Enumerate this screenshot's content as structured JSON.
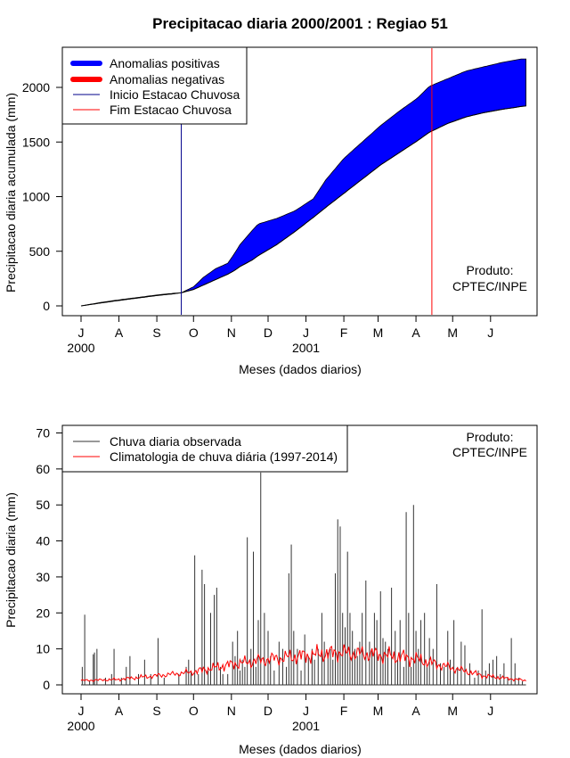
{
  "page": {
    "title": "Precipitacao diaria 2000/2001 : Regiao 51",
    "credit_line1": "Produto:",
    "credit_line2": "CPTEC/INPE"
  },
  "colors": {
    "positive": "#0000ff",
    "negative": "#ff0000",
    "observed": "#333333",
    "climatology": "#ff0000",
    "start_line": "#00008b",
    "end_line": "#ff0000"
  },
  "chart_data": [
    {
      "type": "area",
      "title": "Precipitacao diaria 2000/2001 : Regiao 51",
      "xlabel": "Meses (dados diarios)",
      "ylabel": "Precipitacao diaria acumulada (mm)",
      "ylim": [
        0,
        2300
      ],
      "yticks": [
        0,
        500,
        1000,
        1500,
        2000
      ],
      "month_labels": [
        "J",
        "A",
        "S",
        "O",
        "N",
        "D",
        "J",
        "F",
        "M",
        "A",
        "M",
        "J"
      ],
      "year_labels": [
        {
          "label": "2000",
          "month_index": 0
        },
        {
          "label": "2001",
          "month_index": 6
        }
      ],
      "grid": false,
      "legend_position": "top-left",
      "legend": [
        "Anomalias positivas",
        "Anomalias negativas",
        "Inicio Estacao Chuvosa",
        "Fim Estacao Chuvosa"
      ],
      "season_start_day": 82,
      "season_end_day": 287,
      "series": [
        {
          "name": "observed_cumulative",
          "x_day": [
            0,
            15,
            31,
            45,
            62,
            75,
            82,
            92,
            100,
            110,
            120,
            125,
            130,
            140,
            145,
            160,
            175,
            190,
            200,
            215,
            230,
            245,
            260,
            275,
            285,
            300,
            315,
            330,
            345,
            360,
            364
          ],
          "values": [
            0,
            30,
            55,
            75,
            100,
            115,
            120,
            175,
            260,
            340,
            390,
            470,
            560,
            690,
            750,
            800,
            870,
            980,
            1150,
            1350,
            1500,
            1650,
            1780,
            1900,
            2010,
            2080,
            2150,
            2190,
            2230,
            2260,
            2260
          ]
        },
        {
          "name": "climatology_cumulative",
          "x_day": [
            0,
            15,
            31,
            45,
            62,
            75,
            82,
            92,
            100,
            110,
            120,
            125,
            130,
            140,
            145,
            160,
            175,
            190,
            200,
            215,
            230,
            245,
            260,
            275,
            285,
            300,
            315,
            330,
            345,
            360,
            364
          ],
          "values": [
            0,
            25,
            50,
            70,
            95,
            110,
            120,
            150,
            190,
            240,
            290,
            320,
            360,
            420,
            460,
            560,
            680,
            810,
            900,
            1030,
            1160,
            1290,
            1400,
            1510,
            1590,
            1670,
            1730,
            1770,
            1800,
            1825,
            1830
          ]
        }
      ]
    },
    {
      "type": "line",
      "xlabel": "Meses (dados diarios)",
      "ylabel": "Precipitacao diaria (mm)",
      "ylim": [
        0,
        70
      ],
      "yticks": [
        0,
        10,
        20,
        30,
        40,
        50,
        60,
        70
      ],
      "month_labels": [
        "J",
        "A",
        "S",
        "O",
        "N",
        "D",
        "J",
        "F",
        "M",
        "A",
        "M",
        "J"
      ],
      "year_labels": [
        {
          "label": "2000",
          "month_index": 0
        },
        {
          "label": "2001",
          "month_index": 6
        }
      ],
      "grid": false,
      "legend_position": "top-left",
      "legend": [
        "Chuva diaria observada",
        "Climatologia de chuva diária (1997-2014)"
      ],
      "series": [
        {
          "name": "Chuva diaria observada",
          "spikes": [
            [
              1,
              5
            ],
            [
              3,
              19.5
            ],
            [
              7,
              1
            ],
            [
              10,
              8.5
            ],
            [
              11,
              9
            ],
            [
              13,
              10
            ],
            [
              20,
              2
            ],
            [
              25,
              3
            ],
            [
              27,
              10
            ],
            [
              33,
              2
            ],
            [
              37,
              5
            ],
            [
              40,
              8
            ],
            [
              47,
              3
            ],
            [
              52,
              7
            ],
            [
              57,
              3
            ],
            [
              63,
              13
            ],
            [
              68,
              2
            ],
            [
              80,
              3
            ],
            [
              86,
              5
            ],
            [
              88,
              7
            ],
            [
              90,
              4
            ],
            [
              93,
              36
            ],
            [
              96,
              3
            ],
            [
              99,
              32
            ],
            [
              101,
              28
            ],
            [
              104,
              4
            ],
            [
              106,
              20
            ],
            [
              109,
              25
            ],
            [
              111,
              27
            ],
            [
              114,
              5
            ],
            [
              116,
              3
            ],
            [
              120,
              3
            ],
            [
              124,
              12
            ],
            [
              126,
              8
            ],
            [
              128,
              15
            ],
            [
              130,
              4
            ],
            [
              132,
              7
            ],
            [
              134,
              5
            ],
            [
              136,
              41
            ],
            [
              139,
              10
            ],
            [
              141,
              37
            ],
            [
              143,
              5
            ],
            [
              145,
              18
            ],
            [
              147,
              59
            ],
            [
              150,
              20
            ],
            [
              153,
              15
            ],
            [
              155,
              8
            ],
            [
              158,
              4
            ],
            [
              162,
              12
            ],
            [
              165,
              10
            ],
            [
              168,
              5
            ],
            [
              170,
              31
            ],
            [
              172,
              39
            ],
            [
              174,
              15
            ],
            [
              177,
              10
            ],
            [
              180,
              4
            ],
            [
              183,
              14
            ],
            [
              186,
              8
            ],
            [
              189,
              10
            ],
            [
              191,
              7
            ],
            [
              194,
              10
            ],
            [
              197,
              20
            ],
            [
              199,
              12
            ],
            [
              202,
              9
            ],
            [
              204,
              10
            ],
            [
              206,
              7
            ],
            [
              208,
              31
            ],
            [
              210,
              46
            ],
            [
              212,
              44
            ],
            [
              214,
              20
            ],
            [
              216,
              16
            ],
            [
              218,
              37
            ],
            [
              220,
              20
            ],
            [
              222,
              15
            ],
            [
              224,
              10
            ],
            [
              226,
              8
            ],
            [
              228,
              12
            ],
            [
              230,
              20
            ],
            [
              233,
              29
            ],
            [
              236,
              12
            ],
            [
              238,
              10
            ],
            [
              240,
              20
            ],
            [
              242,
              18
            ],
            [
              245,
              26
            ],
            [
              247,
              13
            ],
            [
              249,
              12
            ],
            [
              251,
              10
            ],
            [
              254,
              27
            ],
            [
              257,
              15
            ],
            [
              259,
              7
            ],
            [
              261,
              18
            ],
            [
              264,
              5
            ],
            [
              266,
              48
            ],
            [
              268,
              20
            ],
            [
              270,
              5
            ],
            [
              272,
              50
            ],
            [
              274,
              15
            ],
            [
              276,
              10
            ],
            [
              278,
              18
            ],
            [
              281,
              20
            ],
            [
              283,
              5
            ],
            [
              285,
              13
            ],
            [
              288,
              10
            ],
            [
              291,
              28
            ],
            [
              294,
              6
            ],
            [
              297,
              5
            ],
            [
              300,
              15
            ],
            [
              302,
              7
            ],
            [
              305,
              18
            ],
            [
              308,
              5
            ],
            [
              311,
              12
            ],
            [
              314,
              11
            ],
            [
              318,
              6
            ],
            [
              322,
              2
            ],
            [
              325,
              4
            ],
            [
              328,
              21
            ],
            [
              331,
              4
            ],
            [
              334,
              6
            ],
            [
              337,
              7
            ],
            [
              340,
              8
            ],
            [
              343,
              3
            ],
            [
              346,
              6
            ],
            [
              349,
              2
            ],
            [
              352,
              13
            ],
            [
              355,
              6
            ],
            [
              358,
              2
            ],
            [
              361,
              1
            ]
          ]
        },
        {
          "name": "Climatologia de chuva diária (1997-2014)",
          "x_day": [
            0,
            30,
            60,
            90,
            120,
            150,
            180,
            210,
            240,
            270,
            300,
            330,
            364
          ],
          "values": [
            1.2,
            1.5,
            2.5,
            3.5,
            5.5,
            7,
            8,
            9,
            8.5,
            7.5,
            5,
            2.5,
            1.2
          ]
        }
      ]
    }
  ]
}
